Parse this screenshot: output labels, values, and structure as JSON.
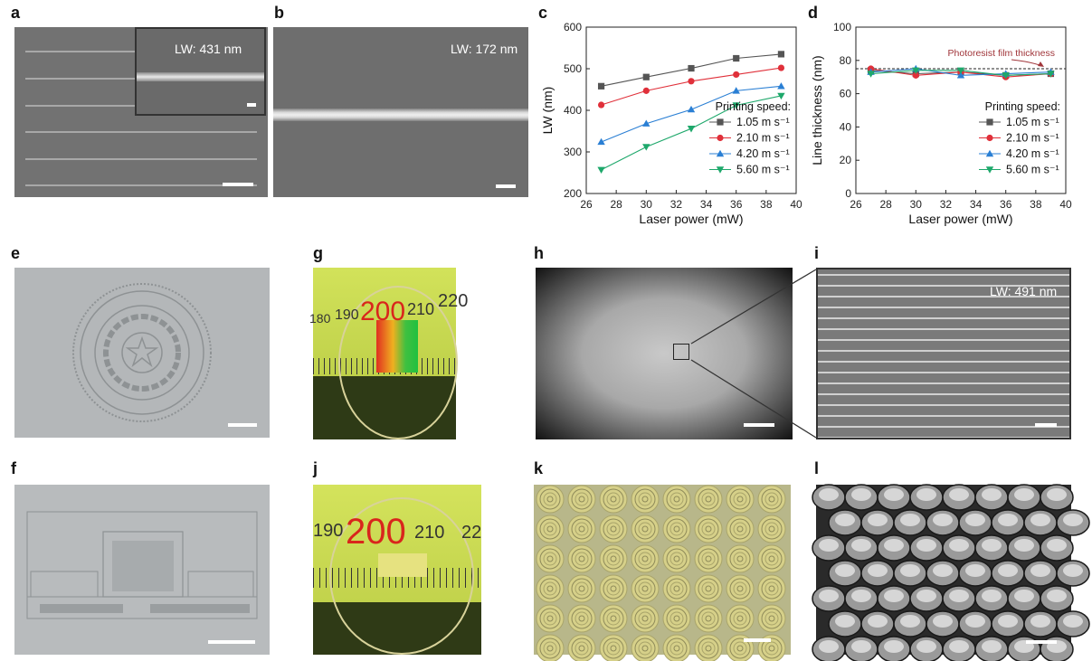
{
  "panel_labels": {
    "a": "a",
    "b": "b",
    "c": "c",
    "d": "d",
    "e": "e",
    "f": "f",
    "g": "g",
    "h": "h",
    "i": "i",
    "j": "j",
    "k": "k",
    "l": "l"
  },
  "panel_a": {
    "inset_lw": "LW: 431 nm"
  },
  "panel_b": {
    "lw": "LW: 172 nm"
  },
  "panel_i": {
    "lw": "LW: 491 nm"
  },
  "ruler_g": {
    "ticks": [
      "180",
      "190",
      "200",
      "210",
      "220"
    ]
  },
  "ruler_j": {
    "ticks": [
      "190",
      "200",
      "210",
      "22"
    ]
  },
  "colors": {
    "series_1": "#555555",
    "series_2": "#e0303a",
    "series_3": "#2a7fd4",
    "series_4": "#1ea86b",
    "annotation": "#a0353a"
  },
  "chart_data": [
    {
      "type": "line",
      "panel": "c",
      "xlabel": "Laser power (mW)",
      "ylabel": "LW (nm)",
      "xlim": [
        26,
        40
      ],
      "ylim": [
        200,
        600
      ],
      "xticks": [
        26,
        28,
        30,
        32,
        34,
        36,
        38,
        40
      ],
      "yticks": [
        200,
        300,
        400,
        500,
        600
      ],
      "legend_title": "Printing speed:",
      "legend_position": "bottom-right",
      "x": [
        27,
        30,
        33,
        36,
        39
      ],
      "series": [
        {
          "name": "1.05 m s⁻¹",
          "marker": "square",
          "values": [
            458,
            480,
            501,
            525,
            535
          ]
        },
        {
          "name": "2.10 m s⁻¹",
          "marker": "circle",
          "values": [
            413,
            447,
            470,
            486,
            502
          ]
        },
        {
          "name": "4.20 m s⁻¹",
          "marker": "triangle-up",
          "values": [
            324,
            368,
            402,
            447,
            458
          ]
        },
        {
          "name": "5.60 m s⁻¹",
          "marker": "triangle-down",
          "values": [
            257,
            312,
            356,
            412,
            435
          ]
        }
      ]
    },
    {
      "type": "line",
      "panel": "d",
      "xlabel": "Laser power (mW)",
      "ylabel": "Line thickness (nm)",
      "xlim": [
        26,
        40
      ],
      "ylim": [
        0,
        100
      ],
      "xticks": [
        26,
        28,
        30,
        32,
        34,
        36,
        38,
        40
      ],
      "yticks": [
        0,
        20,
        40,
        60,
        80,
        100
      ],
      "legend_title": "Printing speed:",
      "legend_position": "bottom-right",
      "reference_line": {
        "y": 75,
        "label": "Photoresist film thickness"
      },
      "x": [
        27,
        30,
        33,
        36,
        39
      ],
      "series": [
        {
          "name": "1.05 m s⁻¹",
          "marker": "square",
          "values": [
            74,
            72,
            73,
            71,
            72
          ]
        },
        {
          "name": "2.10 m s⁻¹",
          "marker": "circle",
          "values": [
            75,
            71,
            73,
            70,
            72
          ]
        },
        {
          "name": "4.20 m s⁻¹",
          "marker": "triangle-up",
          "values": [
            73,
            75,
            71,
            72,
            73
          ]
        },
        {
          "name": "5.60 m s⁻¹",
          "marker": "triangle-down",
          "values": [
            72,
            74,
            74,
            71,
            72
          ]
        }
      ]
    }
  ]
}
